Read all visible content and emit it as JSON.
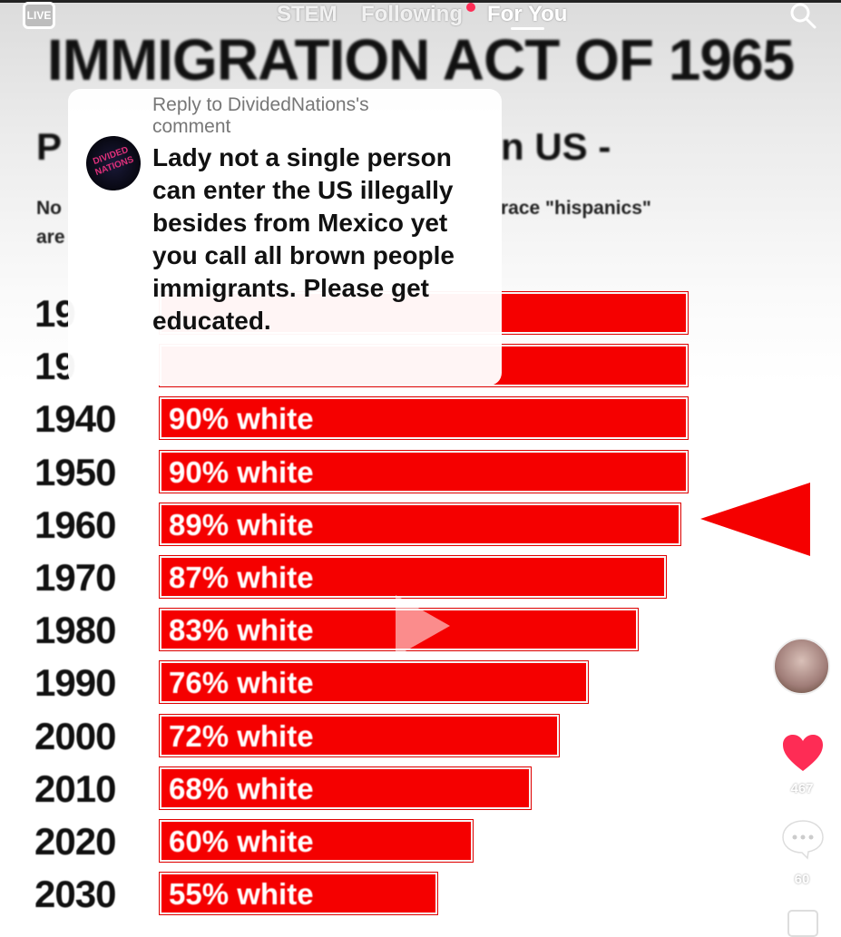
{
  "video": {
    "title": "IMMIGRATION ACT OF 1965",
    "subtitle_left": "P",
    "subtitle_right": "n US -",
    "note_left_1": "No",
    "note_left_2": "are",
    "note_right": "race \"hispanics\"",
    "rows": [
      {
        "year": "19",
        "label": "",
        "percent": null
      },
      {
        "year": "19",
        "label": "",
        "percent": null
      },
      {
        "year": "1940",
        "label": "90% white",
        "percent": 90
      },
      {
        "year": "1950",
        "label": "90% white",
        "percent": 90
      },
      {
        "year": "1960",
        "label": "89% white",
        "percent": 89
      },
      {
        "year": "1970",
        "label": "87% white",
        "percent": 87
      },
      {
        "year": "1980",
        "label": "83% white",
        "percent": 83
      },
      {
        "year": "1990",
        "label": "76% white",
        "percent": 76
      },
      {
        "year": "2000",
        "label": "72% white",
        "percent": 72
      },
      {
        "year": "2010",
        "label": "68% white",
        "percent": 68
      },
      {
        "year": "2020",
        "label": "60% white",
        "percent": 60
      },
      {
        "year": "2030",
        "label": "55% white",
        "percent": 55
      }
    ],
    "accent": "#f50000"
  },
  "nav": {
    "live": "LIVE",
    "tabs": [
      "STEM",
      "Following",
      "For You"
    ],
    "active_tab": "For You"
  },
  "reply_card": {
    "header": "Reply to DividedNations's comment",
    "avatar_text": "DIVIDED NATIONS",
    "comment": "Lady not a single person can enter the US illegally besides from Mexico yet you call all brown people immigrants. Please get educated."
  },
  "actions": {
    "likes": "467",
    "comments": "60",
    "like_color": "#fe2c55"
  }
}
